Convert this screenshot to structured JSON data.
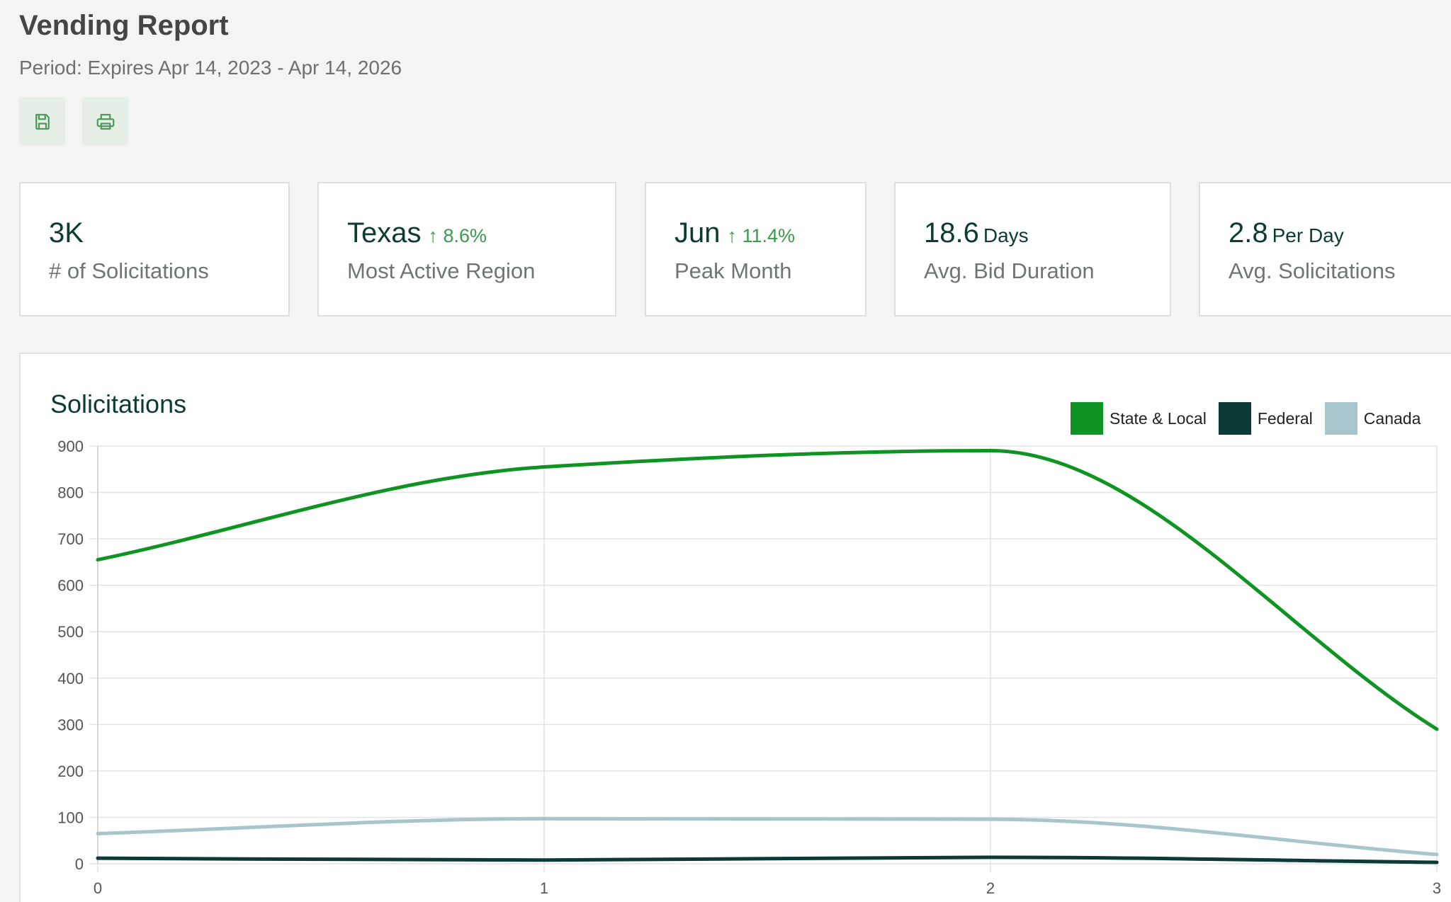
{
  "header": {
    "title": "Vending Report",
    "period": "Period: Expires Apr 14, 2023 - Apr 14, 2026"
  },
  "toolbar": {
    "save_icon": "save-icon",
    "print_icon": "print-icon"
  },
  "stats": [
    {
      "value": "3K",
      "unit": "",
      "trend": "",
      "label": "# of Solicitations"
    },
    {
      "value": "Texas",
      "unit": "",
      "trend": "↑ 8.6%",
      "label": "Most Active Region"
    },
    {
      "value": "Jun",
      "unit": "",
      "trend": "↑ 11.4%",
      "label": "Peak Month"
    },
    {
      "value": "18.6",
      "unit": "Days",
      "trend": "",
      "label": "Avg. Bid Duration"
    },
    {
      "value": "2.8",
      "unit": "Per Day",
      "trend": "",
      "label": "Avg. Solicitations"
    }
  ],
  "colors": {
    "accent": "#0c3b33",
    "trend_up": "#3a9a4e",
    "state_local": "#0f9424",
    "federal": "#0c3b33",
    "canada": "#a8c5cb"
  },
  "chart": {
    "title": "Solicitations"
  },
  "chart_data": {
    "type": "line",
    "title": "Solicitations",
    "x": [
      0,
      1,
      2,
      3
    ],
    "x_tick_labels": [
      "0",
      "1",
      "2",
      "3"
    ],
    "y_tick_labels": [
      "0",
      "100",
      "200",
      "300",
      "400",
      "500",
      "600",
      "700",
      "800",
      "900"
    ],
    "ylim": [
      0,
      900
    ],
    "xlim": [
      0,
      3
    ],
    "grid": true,
    "legend_position": "top-right",
    "series": [
      {
        "name": "State & Local",
        "values": [
          655,
          855,
          890,
          290
        ],
        "color": "#0f9424"
      },
      {
        "name": "Federal",
        "values": [
          12,
          8,
          14,
          3
        ],
        "color": "#0c3b33"
      },
      {
        "name": "Canada",
        "values": [
          65,
          97,
          96,
          20
        ],
        "color": "#a8c5cb"
      }
    ]
  }
}
